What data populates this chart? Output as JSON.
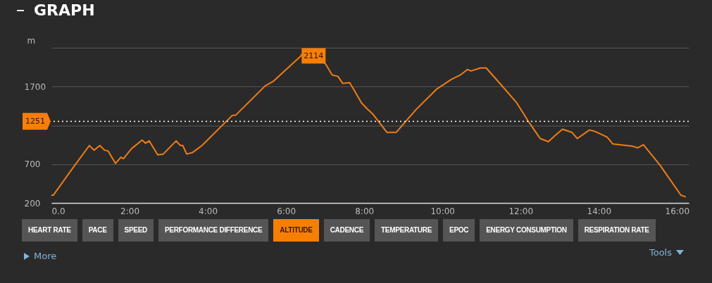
{
  "chart_data": {
    "type": "line",
    "title": "GRAPH",
    "ylabel": "m",
    "x": [
      0,
      0.05,
      0.49,
      0.97,
      1.09,
      1.24,
      1.36,
      1.45,
      1.64,
      1.78,
      1.84,
      2.05,
      2.32,
      2.41,
      2.5,
      2.72,
      2.86,
      3.19,
      3.3,
      3.36,
      3.46,
      3.61,
      3.85,
      4.63,
      4.71,
      5.47,
      5.68,
      6.37,
      6.4,
      7.0,
      7.18,
      7.33,
      7.45,
      7.63,
      7.78,
      7.93,
      8.08,
      8.23,
      8.58,
      8.82,
      9.32,
      9.86,
      10.22,
      10.46,
      10.64,
      10.73,
      10.97,
      11.12,
      11.54,
      11.9,
      12.2,
      12.5,
      12.71,
      12.86,
      13.07,
      13.31,
      13.45,
      13.76,
      13.91,
      14.21,
      14.36,
      14.87,
      14.99,
      15.14,
      15.32,
      15.56,
      16.1,
      16.21
    ],
    "series": [
      {
        "color": "#f07d14",
        "values": [
          300,
          300,
          610,
          940,
          880,
          940,
          880,
          870,
          710,
          790,
          770,
          900,
          1010,
          970,
          1000,
          820,
          830,
          1000,
          940,
          940,
          830,
          850,
          940,
          1330,
          1330,
          1710,
          1770,
          2090,
          2114,
          2000,
          1850,
          1830,
          1740,
          1750,
          1620,
          1490,
          1410,
          1340,
          1110,
          1110,
          1400,
          1670,
          1790,
          1850,
          1920,
          1900,
          1940,
          1940,
          1700,
          1490,
          1250,
          1030,
          990,
          1060,
          1150,
          1110,
          1030,
          1140,
          1120,
          1050,
          960,
          930,
          910,
          950,
          840,
          690,
          300,
          280
        ]
      }
    ],
    "xlim": [
      0,
      16.3
    ],
    "xticks": [
      {
        "value": 0,
        "label": "0.0"
      },
      {
        "value": 2,
        "label": "2:00"
      },
      {
        "value": 4,
        "label": "4:00"
      },
      {
        "value": 6,
        "label": "6:00"
      },
      {
        "value": 8,
        "label": "8:00"
      },
      {
        "value": 10,
        "label": "10:00"
      },
      {
        "value": 12,
        "label": "12:00"
      },
      {
        "value": 14,
        "label": "14:00"
      },
      {
        "value": 16,
        "label": "16:00"
      }
    ],
    "ylim": [
      200,
      2200
    ],
    "yticks": [
      200,
      700,
      {
        "value": 1200,
        "label": null
      },
      1700,
      {
        "value": 2200,
        "label": null
      }
    ],
    "grid": "y",
    "ref_lines": [
      {
        "axis": "y",
        "value": 1251,
        "label": "1251",
        "color": "#ffffff",
        "line_style": "dotted"
      }
    ],
    "annotations": [
      {
        "text": "2114",
        "x": 6.4,
        "y": 2114
      },
      "HEART RATE",
      "PACE",
      "SPEED",
      "PERFORMANCE DIFFERENCE",
      "ALTITUDE",
      "CADENCE",
      "TEMPERATURE",
      "EPOC",
      "ENERGY CONSUMPTION",
      "RESPIRATION RATE",
      "More",
      "Tools"
    ]
  }
}
